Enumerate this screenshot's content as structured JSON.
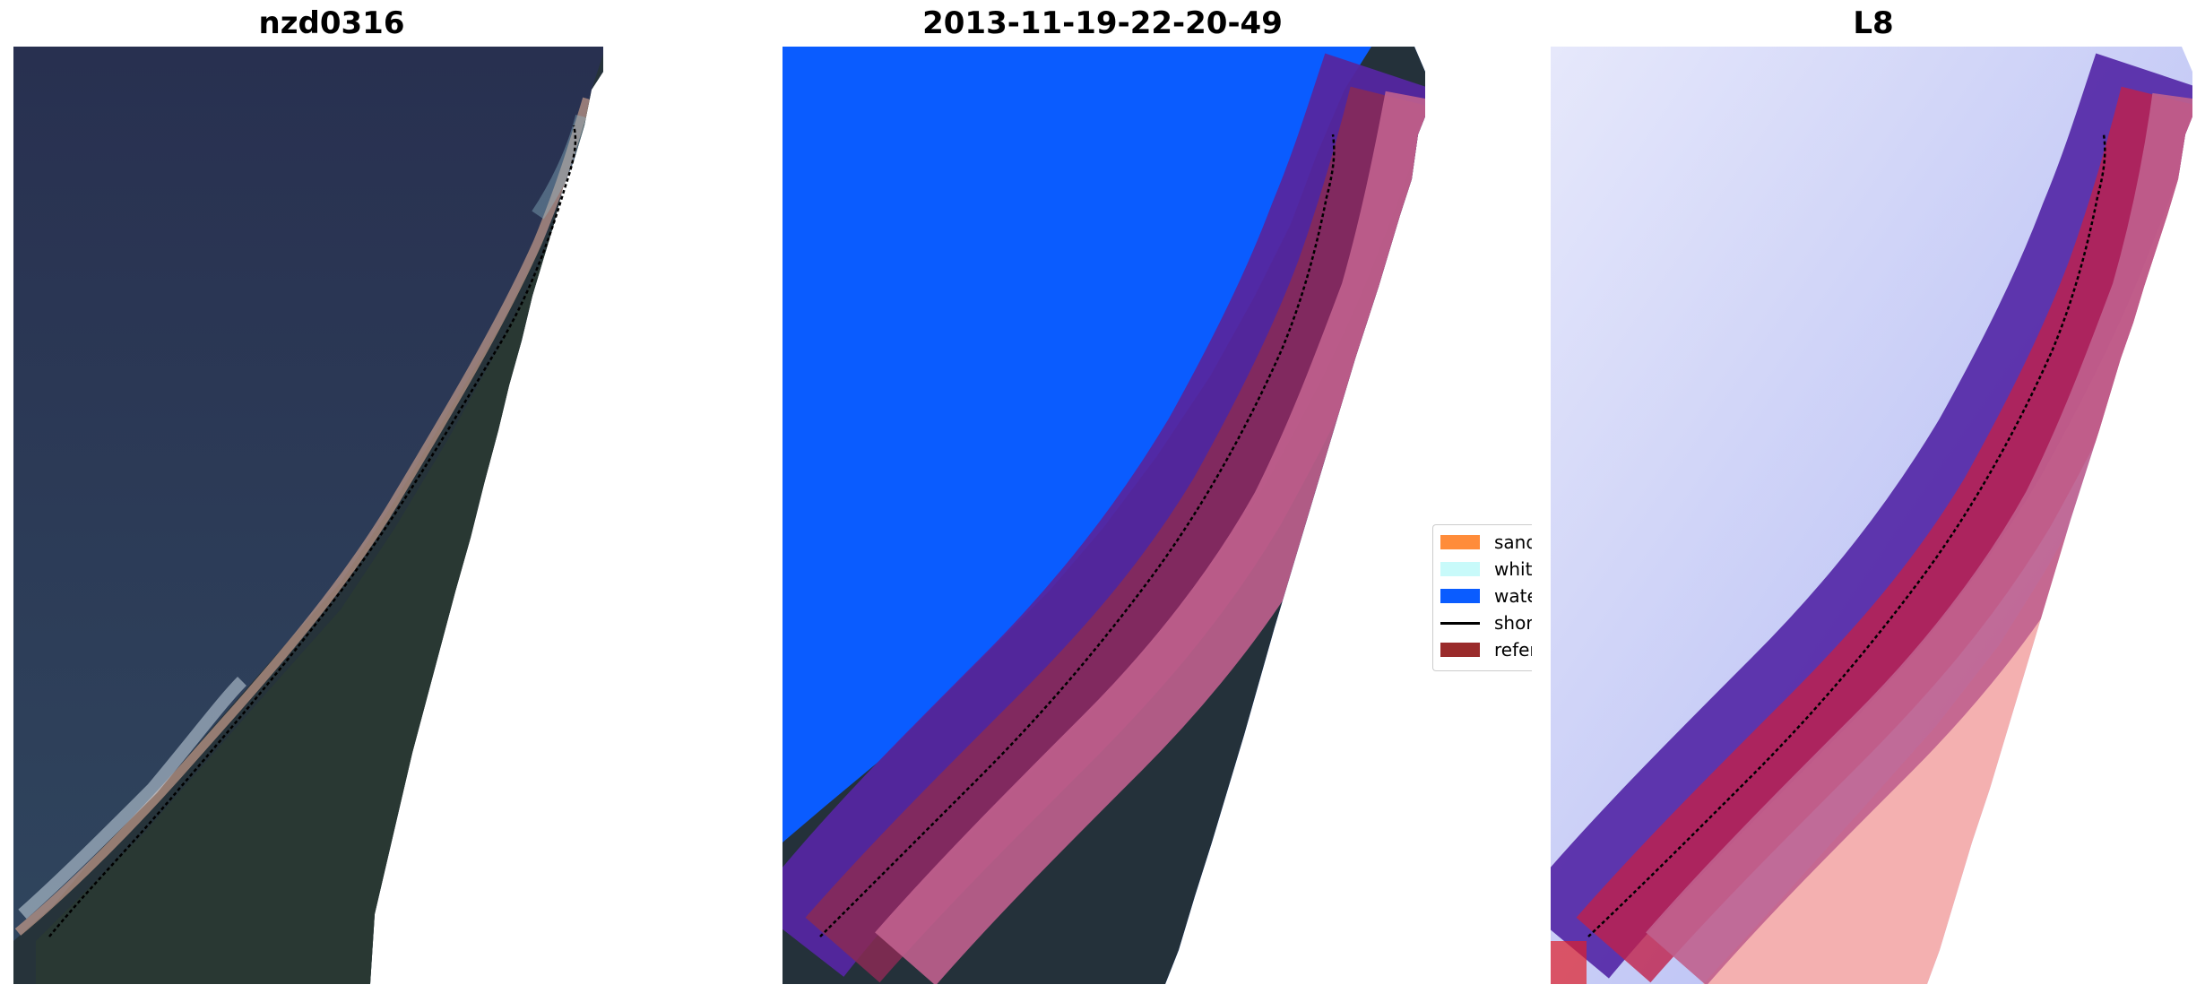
{
  "panels": [
    {
      "title": "nzd0316"
    },
    {
      "title": "2013-11-19-22-20-49"
    },
    {
      "title": "L8"
    }
  ],
  "legend": {
    "items": [
      {
        "label": "sand",
        "color": "#ff8c3a",
        "kind": "patch"
      },
      {
        "label": "whitewater",
        "color": "#c8fafa",
        "kind": "patch"
      },
      {
        "label": "water",
        "color": "#0a5cff",
        "kind": "patch"
      },
      {
        "label": "shoreline",
        "color": "#000000",
        "kind": "line"
      },
      {
        "label": "reference shoreline buffer",
        "color": "#9a2b2b",
        "kind": "patch"
      }
    ]
  },
  "colors": {
    "ocean": "#2c3550",
    "land": "#24313a",
    "water_class": "#0a5cff",
    "buffer_purple": "#5526a0",
    "buffer_pink": "#c0608e",
    "buffer_red": "#8a2a55",
    "index_blue": "#c9cdf6",
    "index_red": "#f2a6a6"
  }
}
